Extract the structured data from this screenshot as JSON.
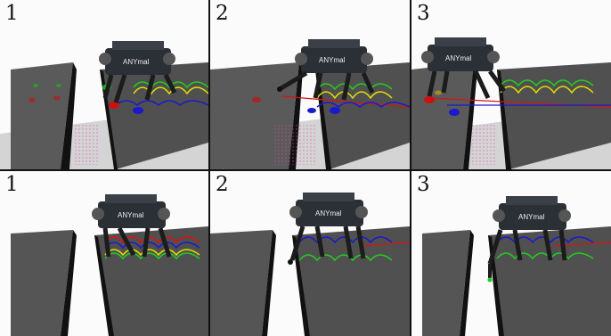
{
  "panels": [
    {
      "label": "1",
      "row": "top",
      "column": 1
    },
    {
      "label": "2",
      "row": "top",
      "column": 2
    },
    {
      "label": "3",
      "row": "top",
      "column": 3
    },
    {
      "label": "1",
      "row": "bottom",
      "column": 1
    },
    {
      "label": "2",
      "row": "bottom",
      "column": 2
    },
    {
      "label": "3",
      "row": "bottom",
      "column": 3
    }
  ],
  "robot_logo": "ANYmal",
  "colors": {
    "terrain_top": "#565656",
    "terrain_side": "#171717",
    "floor": "#d8d8d8",
    "trajectory_yellow": "#e0e000",
    "trajectory_green": "#22cc22",
    "trajectory_red": "#dd1111",
    "trajectory_blue": "#1a1acc",
    "robot_body": "#2b2f36"
  }
}
